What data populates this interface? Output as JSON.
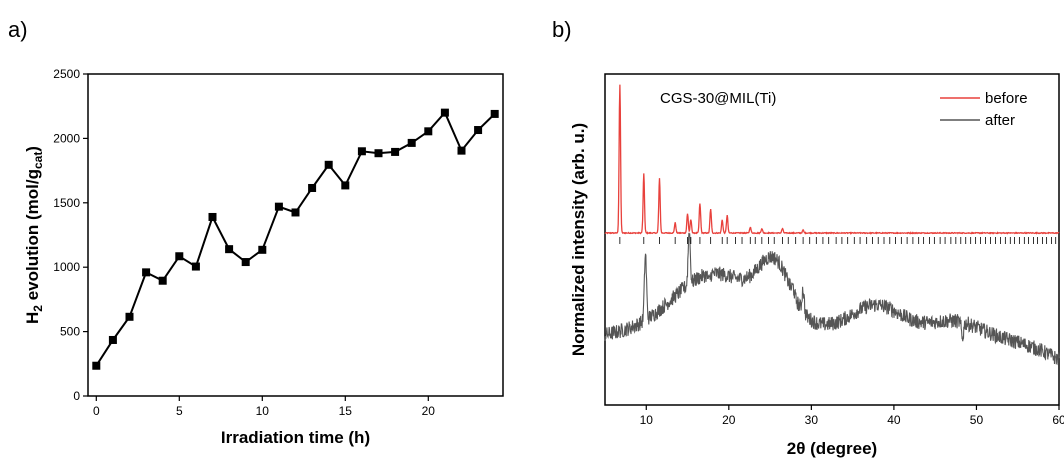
{
  "chart_data": [
    {
      "type": "line",
      "panel_label": "a)",
      "xlabel": "Irradiation time (h)",
      "ylabel_parts": [
        "H",
        "2",
        " evolution (mol/g",
        "cat",
        ")"
      ],
      "xlim": [
        -0.5,
        24.5
      ],
      "ylim": [
        0,
        2500
      ],
      "xticks": [
        0,
        5,
        10,
        15,
        20
      ],
      "yticks": [
        0,
        500,
        1000,
        1500,
        2000,
        2500
      ],
      "marker": "square",
      "color": "#000000",
      "series": [
        {
          "x": [
            0,
            1,
            2,
            3,
            4,
            5,
            6,
            7,
            8,
            9,
            10,
            11,
            12,
            13,
            14,
            15,
            16,
            17,
            18,
            19,
            20,
            21,
            22,
            23,
            24
          ],
          "values": [
            235,
            435,
            615,
            960,
            895,
            1085,
            1005,
            1390,
            1140,
            1040,
            1135,
            1470,
            1425,
            1615,
            1795,
            1635,
            1900,
            1885,
            1895,
            1965,
            2055,
            2200,
            1905,
            2065,
            2190
          ]
        }
      ]
    },
    {
      "type": "line",
      "panel_label": "b)",
      "xlabel": "2θ (degree)",
      "ylabel": "Normalized intensity (arb. u.)",
      "annotation": "CGS-30@MIL(Ti)",
      "xlim": [
        5,
        60
      ],
      "xticks": [
        10,
        20,
        30,
        40,
        50,
        60
      ],
      "legend": "top-right",
      "series": [
        {
          "name": "before",
          "color": "#e8413c",
          "peaks": [
            {
              "x": 6.8,
              "height": 1.0
            },
            {
              "x": 9.7,
              "height": 0.4
            },
            {
              "x": 11.6,
              "height": 0.37
            },
            {
              "x": 13.5,
              "height": 0.07
            },
            {
              "x": 15.0,
              "height": 0.13
            },
            {
              "x": 15.4,
              "height": 0.09
            },
            {
              "x": 16.5,
              "height": 0.2
            },
            {
              "x": 17.8,
              "height": 0.16
            },
            {
              "x": 19.2,
              "height": 0.09
            },
            {
              "x": 19.8,
              "height": 0.12
            },
            {
              "x": 22.6,
              "height": 0.04
            },
            {
              "x": 24.0,
              "height": 0.03
            },
            {
              "x": 26.5,
              "height": 0.03
            },
            {
              "x": 29.0,
              "height": 0.02
            }
          ]
        },
        {
          "name": "after",
          "color": "#555555",
          "sharp_peaks": [
            {
              "x": 9.9,
              "height": 0.94
            },
            {
              "x": 15.2,
              "height": 0.85
            },
            {
              "x": 17.6,
              "height": 0.4
            },
            {
              "x": 29.0,
              "height": 0.62
            },
            {
              "x": 27.8,
              "height": 0.5
            },
            {
              "x": 48.3,
              "height": 0.33
            }
          ]
        }
      ],
      "reference_tick_positions": [
        6.8,
        9.7,
        11.6,
        13.5,
        15.0,
        15.4,
        16.5,
        17.8,
        19.2,
        19.8,
        20.8,
        21.6,
        22.6,
        23.2,
        24.0,
        24.8,
        25.5,
        26.5,
        27.2,
        28.1,
        29.0,
        29.8,
        30.6,
        31.4,
        32.1,
        33.0,
        33.7,
        34.4,
        35.2,
        35.9,
        36.7,
        37.4,
        38.1,
        38.8,
        39.5,
        40.2,
        40.9,
        41.6,
        42.3,
        43.0,
        43.6,
        44.3,
        44.9,
        45.6,
        46.2,
        46.9,
        47.5,
        48.1,
        48.7,
        49.3,
        49.9,
        50.5,
        51.1,
        51.7,
        52.3,
        52.9,
        53.5,
        54.1,
        54.6,
        55.2,
        55.8,
        56.3,
        56.9,
        57.4,
        58.0,
        58.5,
        59.1,
        59.6
      ]
    }
  ]
}
